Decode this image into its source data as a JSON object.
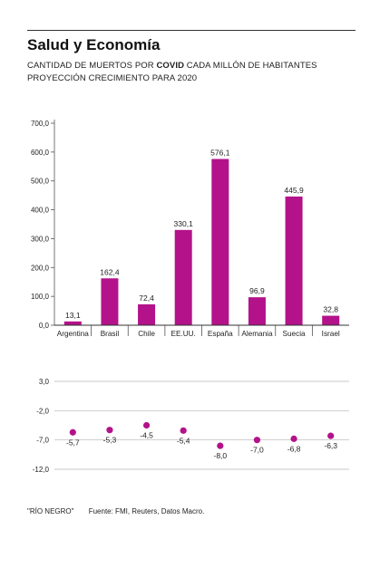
{
  "header": {
    "title": "Salud y Economía",
    "subtitle1_pre": "CANTIDAD DE MUERTOS POR ",
    "subtitle1_bold": "COVID",
    "subtitle1_post": " CADA MILLÓN DE HABITANTES",
    "subtitle2": "PROYECCIÓN CRECIMIENTO PARA 2020"
  },
  "footer": {
    "credit": "\"RÍO NEGRO\"",
    "source": "Fuente: FMI, Reuters, Datos Macro."
  },
  "colors": {
    "accent": "#b3128a",
    "grid": "#b5b5b5",
    "text": "#222222"
  },
  "chart_data": [
    {
      "type": "bar",
      "categories": [
        "Argentina",
        "Brasil",
        "Chile",
        "EE.UU.",
        "España",
        "Alemania",
        "Suecia",
        "Israel"
      ],
      "values": [
        13.1,
        162.4,
        72.4,
        330.1,
        576.1,
        96.9,
        445.9,
        32.8
      ],
      "value_labels": [
        "13,1",
        "162,4",
        "72,4",
        "330,1",
        "576,1",
        "96,9",
        "445,9",
        "32,8"
      ],
      "yticks": [
        0,
        100,
        200,
        300,
        400,
        500,
        600,
        700
      ],
      "ytick_labels": [
        "0,0",
        "100,0",
        "200,0",
        "300,0",
        "400,0",
        "500,0",
        "600,0",
        "700,0"
      ],
      "ylim": [
        0,
        700
      ],
      "grid": false
    },
    {
      "type": "scatter",
      "categories": [
        "Argentina",
        "Brasil",
        "Chile",
        "EE.UU.",
        "España",
        "Alemania",
        "Suecia",
        "Israel"
      ],
      "values": [
        -5.7,
        -5.3,
        -4.5,
        -5.4,
        -8.0,
        -7.0,
        -6.8,
        -6.3
      ],
      "value_labels": [
        "-5,7",
        "-5,3",
        "-4,5",
        "-5,4",
        "-8,0",
        "-7,0",
        "-6,8",
        "-6,3"
      ],
      "yticks": [
        3,
        -2,
        -7,
        -12
      ],
      "ytick_labels": [
        "3,0",
        "-2,0",
        "-7,0",
        "-12,0"
      ],
      "ylim": [
        -12,
        3
      ],
      "grid": true
    }
  ]
}
